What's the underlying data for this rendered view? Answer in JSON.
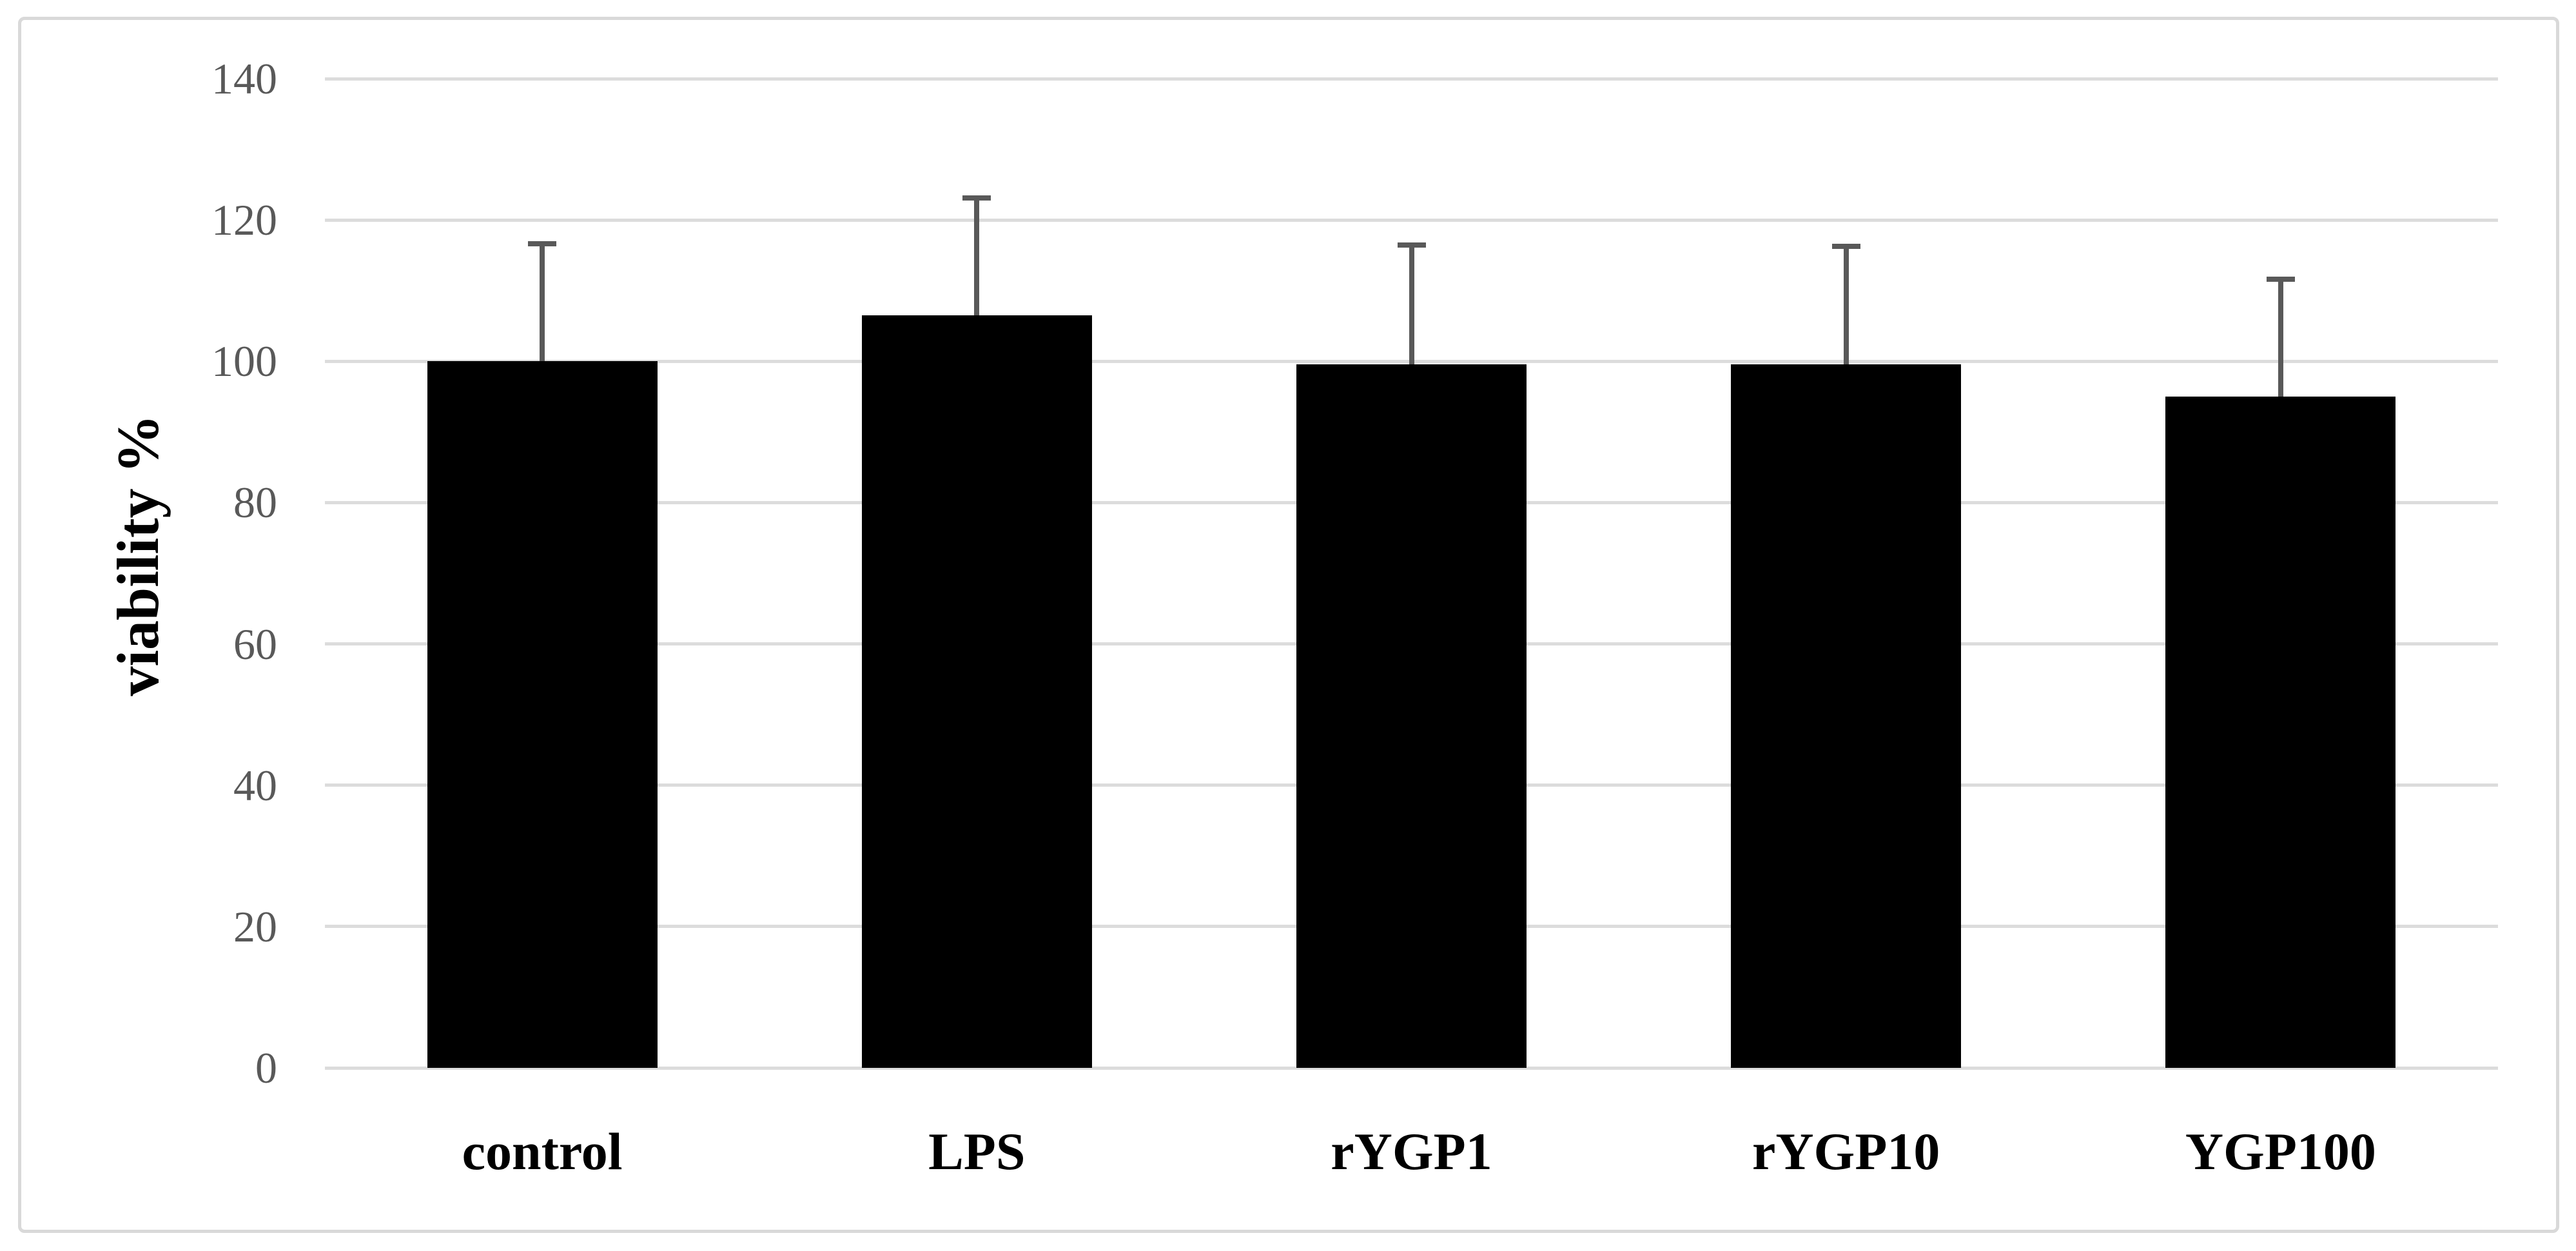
{
  "chart_data": {
    "type": "bar",
    "title": "",
    "categories": [
      "control",
      "LPS",
      "rYGP1",
      "rYGP10",
      "YGP100"
    ],
    "values": [
      100,
      106.5,
      99.6,
      99.6,
      95
    ],
    "errors_plus": [
      17,
      17,
      17.2,
      17,
      17
    ],
    "xlabel": "",
    "ylabel": "viability %",
    "ylim": [
      0,
      140
    ],
    "yticks": [
      0,
      20,
      40,
      60,
      80,
      100,
      120,
      140
    ],
    "grid": "horizontal-only",
    "legend_position": "none",
    "bar_color": "#000000",
    "error_bar_color": "#595959",
    "gridline_color": "#dcdcdc",
    "tick_label_color": "#595959",
    "category_label_color": "#000000",
    "figure_border_color": "#d9d9d9"
  }
}
